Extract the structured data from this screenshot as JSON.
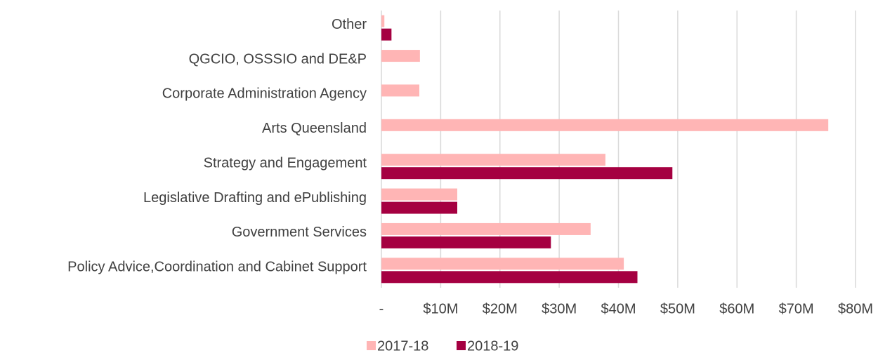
{
  "chart_data": {
    "type": "hbar",
    "categories": [
      "Other",
      "QGCIO, OSSSIO and DE&P",
      "Corporate Administration Agency",
      "Arts Queensland",
      "Strategy and Engagement",
      "Legislative Drafting and ePublishing",
      "Government Services",
      "Policy Advice,Coordination and Cabinet Support"
    ],
    "series": [
      {
        "name": "2017-18",
        "color": "#ffb5b5",
        "values": [
          500000,
          6500000,
          6400000,
          75400000,
          37800000,
          12800000,
          35300000,
          40900000
        ]
      },
      {
        "name": "2018-19",
        "color": "#a50041",
        "values": [
          1700000,
          null,
          null,
          null,
          49100000,
          12800000,
          28600000,
          43200000
        ]
      }
    ],
    "xlim": [
      0,
      80000000
    ],
    "xticks": [
      {
        "value": 0,
        "label": "-"
      },
      {
        "value": 10000000,
        "label": "$10M"
      },
      {
        "value": 20000000,
        "label": "$20M"
      },
      {
        "value": 30000000,
        "label": "$30M"
      },
      {
        "value": 40000000,
        "label": "$40M"
      },
      {
        "value": 50000000,
        "label": "$50M"
      },
      {
        "value": 60000000,
        "label": "$60M"
      },
      {
        "value": 70000000,
        "label": "$70M"
      },
      {
        "value": 80000000,
        "label": "$80M"
      }
    ],
    "grid": true,
    "legend": "bottom"
  }
}
